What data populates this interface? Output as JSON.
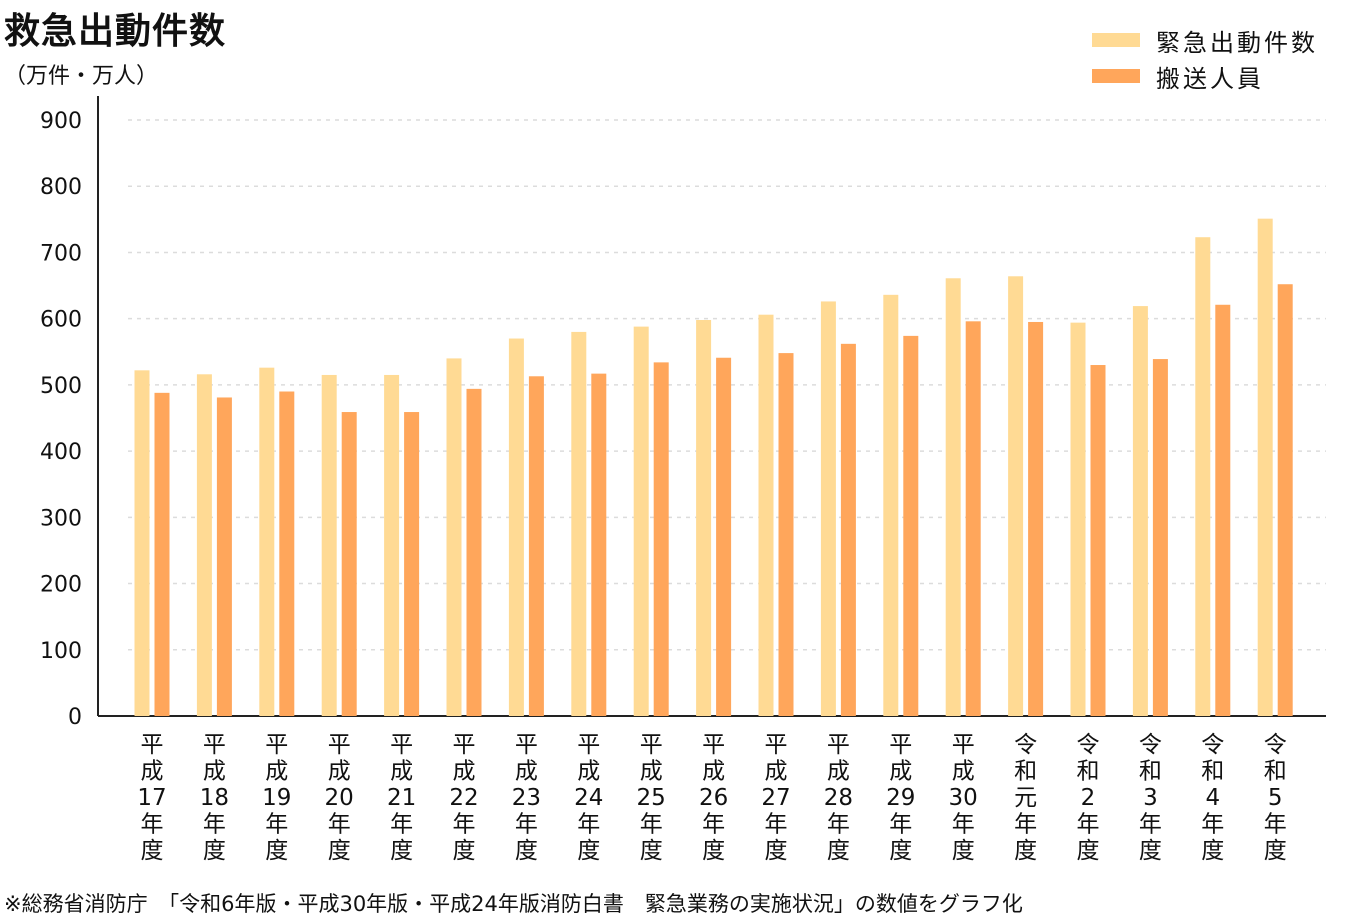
{
  "chart_data": {
    "type": "bar",
    "title": "救急出動件数",
    "unit": "（万件・万人）",
    "categories": [
      "平成17年度",
      "平成18年度",
      "平成19年度",
      "平成20年度",
      "平成21年度",
      "平成22年度",
      "平成23年度",
      "平成24年度",
      "平成25年度",
      "平成26年度",
      "平成27年度",
      "平成28年度",
      "平成29年度",
      "平成30年度",
      "令和元年度",
      "令和2年度",
      "令和3年度",
      "令和4年度",
      "令和5年度"
    ],
    "category_lines": [
      [
        "平",
        "成",
        "17",
        "年",
        "度"
      ],
      [
        "平",
        "成",
        "18",
        "年",
        "度"
      ],
      [
        "平",
        "成",
        "19",
        "年",
        "度"
      ],
      [
        "平",
        "成",
        "20",
        "年",
        "度"
      ],
      [
        "平",
        "成",
        "21",
        "年",
        "度"
      ],
      [
        "平",
        "成",
        "22",
        "年",
        "度"
      ],
      [
        "平",
        "成",
        "23",
        "年",
        "度"
      ],
      [
        "平",
        "成",
        "24",
        "年",
        "度"
      ],
      [
        "平",
        "成",
        "25",
        "年",
        "度"
      ],
      [
        "平",
        "成",
        "26",
        "年",
        "度"
      ],
      [
        "平",
        "成",
        "27",
        "年",
        "度"
      ],
      [
        "平",
        "成",
        "28",
        "年",
        "度"
      ],
      [
        "平",
        "成",
        "29",
        "年",
        "度"
      ],
      [
        "平",
        "成",
        "30",
        "年",
        "度"
      ],
      [
        "令",
        "和",
        "元",
        "年",
        "度"
      ],
      [
        "令",
        "和",
        "2",
        "年",
        "度"
      ],
      [
        "令",
        "和",
        "3",
        "年",
        "度"
      ],
      [
        "令",
        "和",
        "4",
        "年",
        "度"
      ],
      [
        "令",
        "和",
        "5",
        "年",
        "度"
      ]
    ],
    "series": [
      {
        "name": "緊急出動件数",
        "color": "#FFDA94",
        "values": [
          522,
          516,
          526,
          515,
          515,
          540,
          570,
          580,
          588,
          598,
          606,
          626,
          636,
          661,
          664,
          594,
          619,
          723,
          751
        ]
      },
      {
        "name": "搬送人員",
        "color": "#FFA65B",
        "values": [
          488,
          481,
          490,
          459,
          459,
          494,
          513,
          517,
          534,
          541,
          548,
          562,
          574,
          596,
          595,
          530,
          539,
          621,
          652
        ]
      }
    ],
    "ylim": [
      0,
      900
    ],
    "yticks": [
      0,
      100,
      200,
      300,
      400,
      500,
      600,
      700,
      800,
      900
    ],
    "grid": true,
    "legend_position": "top-right"
  },
  "source_note": "※総務省消防庁　「令和6年版・平成30年版・平成24年版消防白書　緊急業務の実施状況」の数値をグラフ化"
}
